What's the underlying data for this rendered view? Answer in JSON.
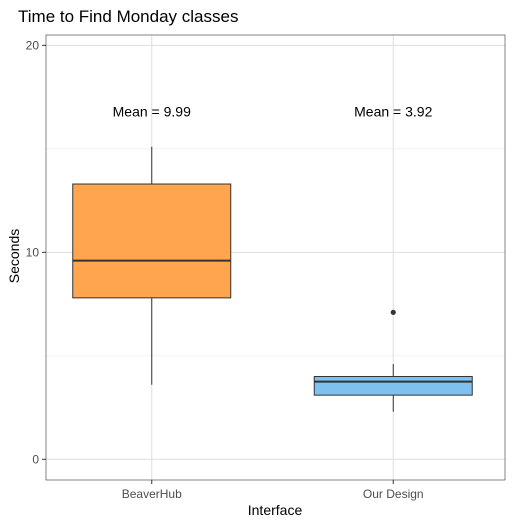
{
  "chart_data": {
    "type": "boxplot",
    "title": "Time to Find Monday classes",
    "xlabel": "Interface",
    "ylabel": "Seconds",
    "ylim": [
      -1,
      20.5
    ],
    "yticks": [
      0,
      10,
      20
    ],
    "grid": true,
    "legend": "none",
    "categories": [
      "BeaverHub",
      "Our Design"
    ],
    "boxes": [
      {
        "category": "BeaverHub",
        "whisker_low": 3.6,
        "q1": 7.8,
        "median": 9.6,
        "q3": 13.3,
        "whisker_high": 15.1,
        "outliers": [],
        "fill": "#FFA54F",
        "annotation": "Mean = 9.99"
      },
      {
        "category": "Our Design",
        "whisker_low": 2.3,
        "q1": 3.1,
        "median": 3.75,
        "q3": 4.0,
        "whisker_high": 4.6,
        "outliers": [
          7.1
        ],
        "fill": "#7EC0EE",
        "annotation": "Mean = 3.92"
      }
    ],
    "annotation_y": 16.8
  }
}
